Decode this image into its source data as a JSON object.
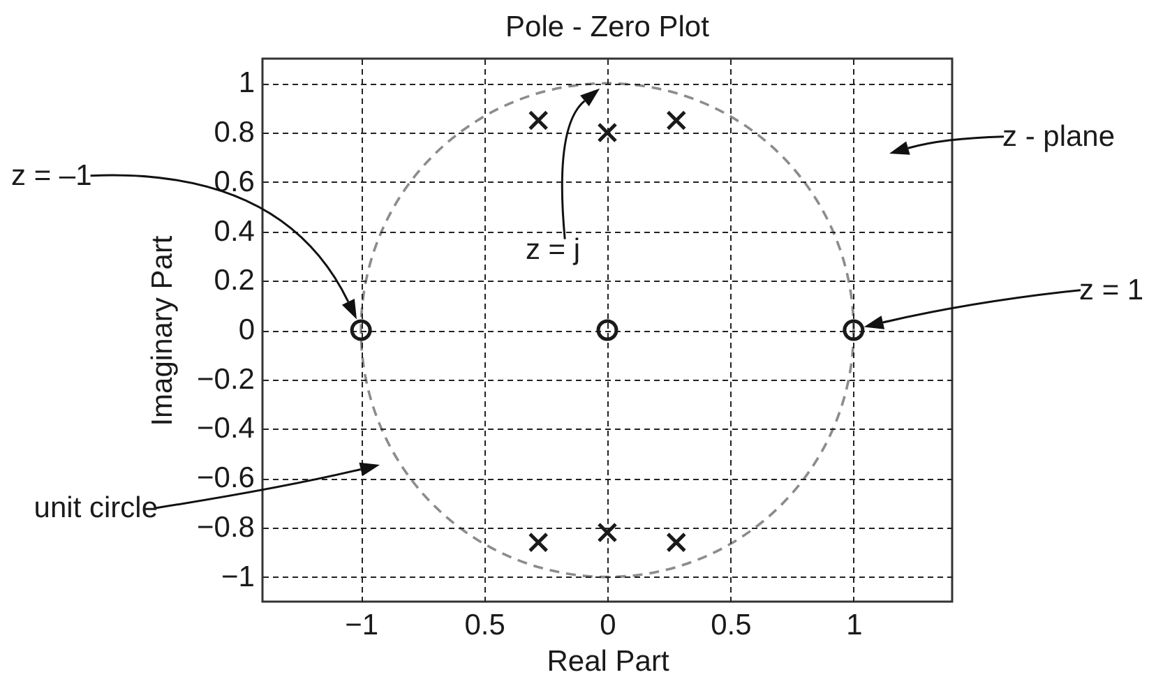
{
  "chart_data": {
    "type": "scatter",
    "title": "Pole - Zero Plot",
    "xlabel": "Real Part",
    "ylabel": "Imaginary Part",
    "xlim": [
      -1.4,
      1.4
    ],
    "ylim": [
      -1.1,
      1.1
    ],
    "xticks": [
      -1,
      {
        "value": -0.5,
        "label": "0.5"
      },
      0,
      0.5,
      1
    ],
    "yticks": [
      -1,
      -0.8,
      -0.6,
      -0.4,
      -0.2,
      0,
      0.2,
      0.4,
      0.6,
      0.8,
      1
    ],
    "grid": true,
    "series": [
      {
        "color": "#1a1a1a",
        "marker": "circle",
        "x": [
          -1,
          0,
          1
        ],
        "values": [
          0,
          0,
          0
        ]
      },
      {
        "color": "#1a1a1a",
        "marker": "cross",
        "x": [
          -0.28,
          0,
          0.28,
          -0.28,
          0,
          0.28
        ],
        "values": [
          0.85,
          0.8,
          0.85,
          -0.86,
          -0.82,
          -0.86
        ]
      }
    ],
    "annotations": [
      "z = –1",
      "z = j",
      "z - plane",
      "z = 1",
      "unit circle"
    ]
  }
}
